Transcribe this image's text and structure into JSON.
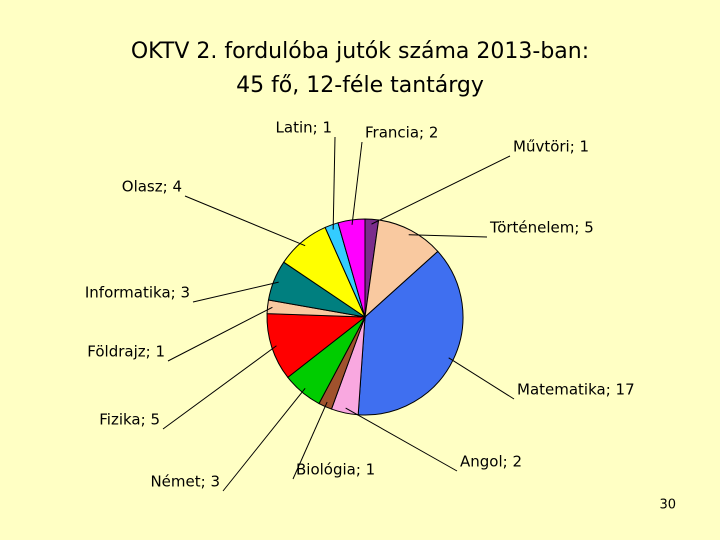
{
  "chart_data": {
    "type": "pie",
    "title_lines": [
      "OKTV 2. fordulóba jutók száma 2013-ban:",
      "45 fő, 12-féle tantárgy"
    ],
    "categories": [
      "Művtöri",
      "Történelem",
      "Matematika",
      "Angol",
      "Biológia",
      "Német",
      "Fizika",
      "Földrajz",
      "Informatika",
      "Olasz",
      "Latin",
      "Francia"
    ],
    "values": [
      1,
      5,
      17,
      2,
      1,
      3,
      5,
      1,
      3,
      4,
      1,
      2
    ],
    "value_labels": [
      "Művtöri; 1",
      "Történelem; 5",
      "Matematika; 17",
      "Angol; 2",
      "Biológia; 1",
      "Német; 3",
      "Fizika; 5",
      "Földrajz; 1",
      "Informatika; 3",
      "Olasz; 4",
      "Latin; 1",
      "Francia; 2"
    ],
    "colors": [
      "#7b2c8c",
      "#f9c9a0",
      "#3f6ff0",
      "#f9a8e0",
      "#a0522d",
      "#00cc00",
      "#ff0000",
      "#f9c9a0",
      "#007f7f",
      "#ffff00",
      "#33ccff",
      "#ff00ff"
    ]
  },
  "page_number": "30"
}
